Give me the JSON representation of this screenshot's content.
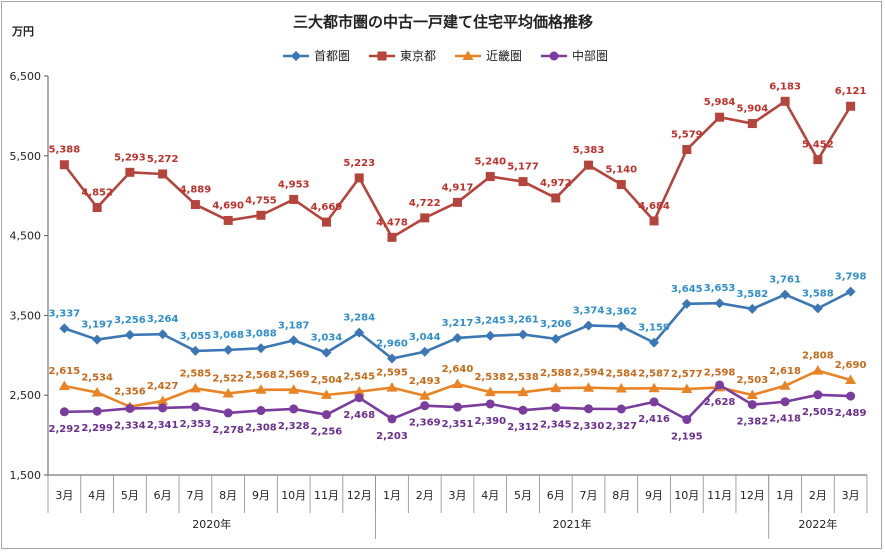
{
  "chart_data": {
    "type": "line",
    "title": "三大都市圏の中古一戸建て住宅平均価格推移",
    "ylabel": "万円",
    "ylim": [
      1500,
      6500
    ],
    "yticks": [
      "1,500",
      "2,500",
      "3,500",
      "4,500",
      "5,500",
      "6,500"
    ],
    "yticks_values": [
      1500,
      2500,
      3500,
      4500,
      5500,
      6500
    ],
    "categories": [
      "3月",
      "4月",
      "5月",
      "6月",
      "7月",
      "8月",
      "9月",
      "10月",
      "11月",
      "12月",
      "1月",
      "2月",
      "3月",
      "4月",
      "5月",
      "6月",
      "7月",
      "8月",
      "9月",
      "10月",
      "11月",
      "12月",
      "1月",
      "2月",
      "3月"
    ],
    "year_groups": [
      {
        "label": "2020年",
        "count": 10
      },
      {
        "label": "2021年",
        "count": 12
      },
      {
        "label": "2022年",
        "count": 3
      }
    ],
    "legend_position": "top",
    "grid": false,
    "series": [
      {
        "name": "首都圏",
        "color": "#3c77b5",
        "label_color": "#2e8fcf",
        "marker": "diamond",
        "values": [
          3337,
          3197,
          3256,
          3264,
          3055,
          3068,
          3088,
          3187,
          3034,
          3284,
          2960,
          3044,
          3217,
          3245,
          3261,
          3206,
          3374,
          3362,
          3159,
          3645,
          3653,
          3582,
          3761,
          3588,
          3798
        ],
        "labels": [
          "3,337",
          "3,197",
          "3,256",
          "3,264",
          "3,055",
          "3,068",
          "3,088",
          "3,187",
          "3,034",
          "3,284",
          "2,960",
          "3,044",
          "3,217",
          "3,245",
          "3,261",
          "3,206",
          "3,374",
          "3,362",
          "3,159",
          "3,645",
          "3,653",
          "3,582",
          "3,761",
          "3,588",
          "3,798"
        ]
      },
      {
        "name": "東京都",
        "color": "#b5443c",
        "label_color": "#c0302a",
        "marker": "square",
        "values": [
          5388,
          4852,
          5293,
          5272,
          4889,
          4690,
          4755,
          4953,
          4669,
          5223,
          4478,
          4722,
          4917,
          5240,
          5177,
          4972,
          5383,
          5140,
          4684,
          5579,
          5984,
          5904,
          6183,
          5452,
          6121
        ],
        "labels": [
          "5,388",
          "4,852",
          "5,293",
          "5,272",
          "4,889",
          "4,690",
          "4,755",
          "4,953",
          "4,669",
          "5,223",
          "4,478",
          "4,722",
          "4,917",
          "5,240",
          "5,177",
          "4,972",
          "5,383",
          "5,140",
          "4,684",
          "5,579",
          "5,984",
          "5,904",
          "6,183",
          "5,452",
          "6,121"
        ]
      },
      {
        "name": "近畿圏",
        "color": "#e98324",
        "label_color": "#c86a1a",
        "marker": "triangle",
        "values": [
          2615,
          2534,
          2356,
          2427,
          2585,
          2522,
          2568,
          2569,
          2504,
          2545,
          2595,
          2493,
          2640,
          2538,
          2538,
          2588,
          2594,
          2584,
          2587,
          2577,
          2598,
          2503,
          2618,
          2808,
          2690
        ],
        "labels": [
          "2,615",
          "2,534",
          "2,356",
          "2,427",
          "2,585",
          "2,522",
          "2,568",
          "2,569",
          "2,504",
          "2,545",
          "2,595",
          "2,493",
          "2,640",
          "2,538",
          "2,538",
          "2,588",
          "2,594",
          "2,584",
          "2,587",
          "2,577",
          "2,598",
          "2,503",
          "2,618",
          "2,808",
          "2,690"
        ]
      },
      {
        "name": "中部圏",
        "color": "#7a3d9e",
        "label_color": "#6b2f8f",
        "marker": "circle",
        "values": [
          2292,
          2299,
          2334,
          2341,
          2353,
          2278,
          2308,
          2328,
          2256,
          2468,
          2203,
          2369,
          2351,
          2390,
          2312,
          2345,
          2330,
          2327,
          2416,
          2195,
          2628,
          2382,
          2418,
          2505,
          2489
        ],
        "labels": [
          "2,292",
          "2,299",
          "2,334",
          "2,341",
          "2,353",
          "2,278",
          "2,308",
          "2,328",
          "2,256",
          "2,468",
          "2,203",
          "2,369",
          "2,351",
          "2,390",
          "2,312",
          "2,345",
          "2,330",
          "2,327",
          "2,416",
          "2,195",
          "2,628",
          "2,382",
          "2,418",
          "2,505",
          "2,489"
        ]
      }
    ]
  }
}
